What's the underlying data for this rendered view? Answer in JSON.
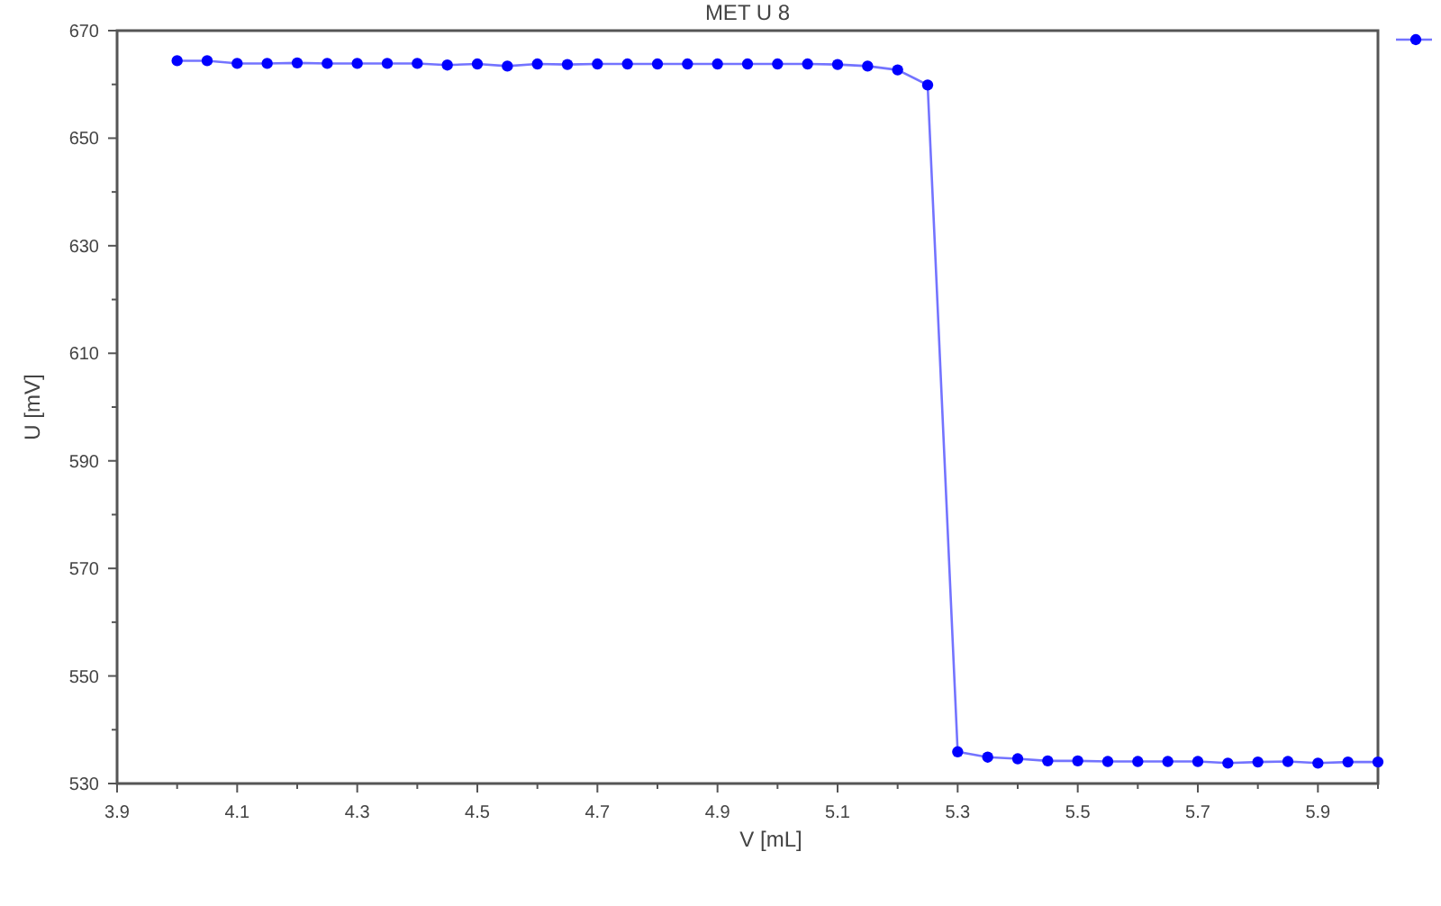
{
  "chart_data": {
    "type": "line",
    "title": "MET U 8",
    "xlabel": "V [mL]",
    "ylabel": "U [mV]",
    "xlim": [
      3.9,
      6.0
    ],
    "ylim": [
      530,
      670
    ],
    "xticks": [
      3.9,
      {
        "value": 4.0,
        "label": null
      },
      4.1,
      {
        "value": 4.2,
        "label": null
      },
      4.3,
      {
        "value": 4.4,
        "label": null
      },
      4.5,
      {
        "value": 4.6,
        "label": null
      },
      4.7,
      {
        "value": 4.8,
        "label": null
      },
      4.9,
      {
        "value": 5.0,
        "label": null
      },
      5.1,
      {
        "value": 5.2,
        "label": null
      },
      5.3,
      {
        "value": 5.4,
        "label": null
      },
      5.5,
      {
        "value": 5.6,
        "label": null
      },
      5.7,
      {
        "value": 5.8,
        "label": null
      },
      5.9,
      {
        "value": 6.0,
        "label": null
      }
    ],
    "yticks": [
      530,
      {
        "value": 540,
        "label": null
      },
      550,
      {
        "value": 560,
        "label": null
      },
      570,
      {
        "value": 580,
        "label": null
      },
      590,
      {
        "value": 600,
        "label": null
      },
      610,
      {
        "value": 620,
        "label": null
      },
      630,
      {
        "value": 640,
        "label": null
      },
      650,
      {
        "value": 660,
        "label": null
      },
      670
    ],
    "grid": false,
    "marker": "circle",
    "line_style": "solid",
    "series": [
      {
        "color": "#0000ff",
        "x": [
          4.0,
          4.05,
          4.1,
          4.15,
          4.2,
          4.25,
          4.3,
          4.35,
          4.4,
          4.45,
          4.5,
          4.55,
          4.6,
          4.65,
          4.7,
          4.75,
          4.8,
          4.85,
          4.9,
          4.95,
          5.0,
          5.05,
          5.1,
          5.15,
          5.2,
          5.25,
          5.3,
          5.35,
          5.4,
          5.45,
          5.5,
          5.55,
          5.6,
          5.65,
          5.7,
          5.75,
          5.8,
          5.85,
          5.9,
          5.95,
          6.0
        ],
        "values": [
          664.4,
          664.4,
          663.9,
          663.9,
          664.0,
          663.9,
          663.9,
          663.9,
          663.9,
          663.6,
          663.8,
          663.4,
          663.8,
          663.7,
          663.8,
          663.8,
          663.8,
          663.8,
          663.8,
          663.8,
          663.8,
          663.8,
          663.7,
          663.4,
          662.7,
          659.9,
          535.9,
          534.9,
          534.6,
          534.2,
          534.2,
          534.1,
          534.1,
          534.1,
          534.1,
          533.8,
          534.0,
          534.1,
          533.8,
          534.0,
          534.0
        ]
      }
    ]
  }
}
